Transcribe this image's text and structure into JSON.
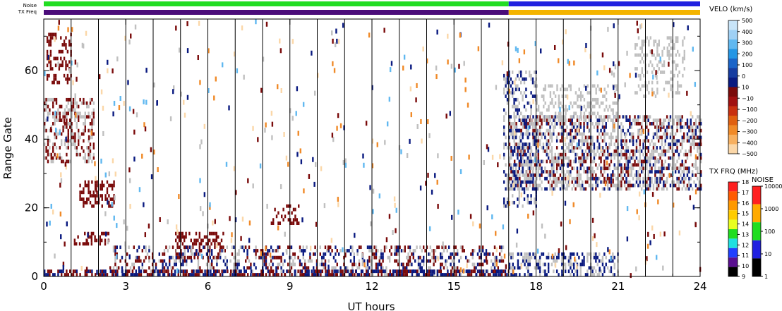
{
  "panel": {
    "noise_label": "Noise",
    "txfreq_label": "TX Freq"
  },
  "chart_data": {
    "type": "heatmap",
    "xlabel": "UT hours",
    "ylabel": "Range Gate",
    "xlim": [
      0,
      24
    ],
    "ylim": [
      0,
      75
    ],
    "xticks": [
      "0",
      "3",
      "6",
      "9",
      "12",
      "15",
      "18",
      "21",
      "24"
    ],
    "yticks": [
      "0",
      "20",
      "40",
      "60"
    ],
    "hour_lines": [
      1,
      2,
      3,
      4,
      5,
      6,
      7,
      8,
      9,
      10,
      11,
      12,
      13,
      14,
      15,
      16,
      17,
      18,
      19,
      20,
      21,
      22,
      23
    ],
    "ground_scatter_color": "#c0c0c0",
    "noise_bar": [
      {
        "from": 0,
        "to": 17,
        "color": "#22dd22"
      },
      {
        "from": 17,
        "to": 24,
        "color": "#2020e0"
      }
    ],
    "txfreq_bar": [
      {
        "from": 0,
        "to": 17,
        "color": "#4b0c7a"
      },
      {
        "from": 17,
        "to": 24,
        "color": "#f4b400"
      }
    ],
    "echo_regions": [
      {
        "name": "velocity",
        "t0": 0.0,
        "t1": 1.8,
        "g0": 33,
        "g1": 52,
        "density": 0.45,
        "colors": [
          "#7a0a0a",
          "#c0c0c0"
        ]
      },
      {
        "name": "velocity",
        "t0": 0.1,
        "t1": 1.0,
        "g0": 56,
        "g1": 71,
        "density": 0.35,
        "colors": [
          "#7a0a0a"
        ]
      },
      {
        "name": "velocity",
        "t0": 1.3,
        "t1": 2.6,
        "g0": 20,
        "g1": 28,
        "density": 0.4,
        "colors": [
          "#7a0a0a"
        ]
      },
      {
        "name": "velocity",
        "t0": 1.1,
        "t1": 2.4,
        "g0": 9,
        "g1": 13,
        "density": 0.45,
        "colors": [
          "#7a0a0a"
        ]
      },
      {
        "name": "velocity",
        "t0": 4.8,
        "t1": 6.6,
        "g0": 5,
        "g1": 13,
        "density": 0.35,
        "colors": [
          "#7a0a0a"
        ]
      },
      {
        "name": "velocity",
        "t0": 8.3,
        "t1": 9.3,
        "g0": 15,
        "g1": 21,
        "density": 0.3,
        "colors": [
          "#7a0a0a"
        ]
      },
      {
        "name": "velocity",
        "t0": 2.4,
        "t1": 16.8,
        "g0": 0,
        "g1": 9,
        "density": 0.35,
        "colors": [
          "#7a0a0a",
          "#c0c0c0",
          "#0a1a80"
        ]
      },
      {
        "name": "velocity",
        "t0": 0.0,
        "t1": 17.0,
        "g0": 0,
        "g1": 2,
        "density": 0.6,
        "colors": [
          "#0a1a80",
          "#7a0a0a"
        ]
      },
      {
        "name": "velocity",
        "t0": 17.0,
        "t1": 24.0,
        "g0": 25,
        "g1": 47,
        "density": 0.55,
        "colors": [
          "#c0c0c0",
          "#c0c0c0",
          "#0a1a80",
          "#7a0a0a"
        ]
      },
      {
        "name": "velocity",
        "t0": 16.8,
        "t1": 18.0,
        "g0": 20,
        "g1": 60,
        "density": 0.35,
        "colors": [
          "#0a1a80",
          "#c0c0c0"
        ]
      },
      {
        "name": "velocity",
        "t0": 18.0,
        "t1": 21.0,
        "g0": 45,
        "g1": 56,
        "density": 0.3,
        "colors": [
          "#c0c0c0"
        ]
      },
      {
        "name": "velocity",
        "t0": 21.6,
        "t1": 23.4,
        "g0": 52,
        "g1": 70,
        "density": 0.3,
        "colors": [
          "#c0c0c0"
        ]
      },
      {
        "name": "velocity",
        "t0": 17.0,
        "t1": 21.0,
        "g0": 0,
        "g1": 7,
        "density": 0.45,
        "colors": [
          "#0a1a80",
          "#c0c0c0"
        ]
      }
    ],
    "velocity_scale": {
      "title": "VELO (km/s)",
      "ticks": [
        "500",
        "400",
        "300",
        "200",
        "100",
        "0",
        "10",
        "−10",
        "−100",
        "−200",
        "−300",
        "−400",
        "−500"
      ],
      "colors": [
        "#c8e4f8",
        "#9fd0f4",
        "#60b8f0",
        "#2496e4",
        "#1a64c8",
        "#163ca0",
        "#0a1a80",
        "#7a0a0a",
        "#a01010",
        "#c83010",
        "#e06010",
        "#f08a28",
        "#f7b060",
        "#fbd7a8"
      ]
    },
    "txfreq_scale": {
      "title": "TX FRQ (MHz)",
      "ticks": [
        "18",
        "17",
        "16",
        "15",
        "14",
        "13",
        "12",
        "11",
        "10",
        "9"
      ],
      "colors": [
        "#ff2020",
        "#ff5a00",
        "#ff9900",
        "#ffcc00",
        "#e8ff20",
        "#20dd20",
        "#20e0e0",
        "#2040ff",
        "#5a1090",
        "#000000"
      ]
    },
    "noise_scale": {
      "title": "NOISE",
      "ticks": [
        "10000",
        "1000",
        "100",
        "10",
        "1"
      ],
      "colors": [
        "#ff2020",
        "#ffaa00",
        "#20dd20",
        "#2020e0",
        "#000000"
      ]
    }
  }
}
